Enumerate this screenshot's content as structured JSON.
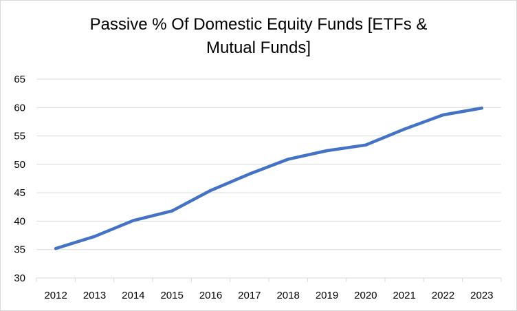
{
  "chart_data": {
    "type": "line",
    "title_line1": "Passive % Of Domestic Equity Funds [ETFs &",
    "title_line2": "Mutual Funds]",
    "categories": [
      "2012",
      "2013",
      "2014",
      "2015",
      "2016",
      "2017",
      "2018",
      "2019",
      "2020",
      "2021",
      "2022",
      "2023"
    ],
    "series": [
      {
        "values": [
          35.2,
          37.3,
          40.1,
          41.8,
          45.4,
          48.3,
          50.9,
          52.4,
          53.4,
          56.2,
          58.7,
          59.9
        ],
        "color": "#4472c4"
      }
    ],
    "ylim": [
      30,
      65
    ],
    "yticks": [
      30,
      35,
      40,
      45,
      50,
      55,
      60,
      65
    ],
    "grid": true,
    "legend": "none"
  }
}
